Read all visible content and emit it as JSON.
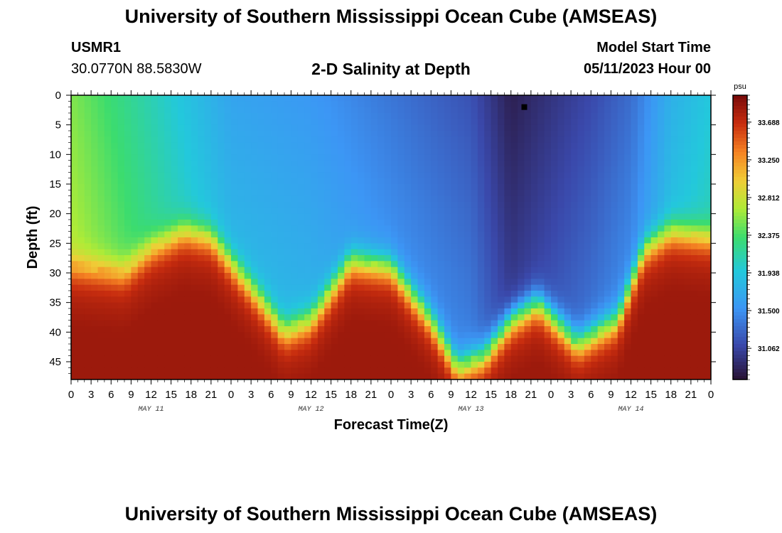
{
  "header": {
    "title": "University of Southern Mississippi Ocean Cube (AMSEAS)",
    "station": "USMR1",
    "coords": "30.0770N  88.5830W",
    "subtitle": "2-D Salinity at Depth",
    "model_start_label": "Model Start Time",
    "model_start_value": "05/11/2023 Hour 00"
  },
  "footer": {
    "title": "University of Southern Mississippi Ocean Cube (AMSEAS)"
  },
  "chart_data": {
    "type": "heatmap",
    "title": "2-D Salinity at Depth",
    "xlabel": "Forecast Time(Z)",
    "ylabel": "Depth (ft)",
    "x_range_hours": [
      0,
      96
    ],
    "y_range_ft": [
      0,
      48
    ],
    "x_tick_labels": [
      "0",
      "3",
      "6",
      "9",
      "12",
      "15",
      "18",
      "21",
      "0",
      "3",
      "6",
      "9",
      "12",
      "15",
      "18",
      "21",
      "0",
      "3",
      "6",
      "9",
      "12",
      "15",
      "18",
      "21",
      "0",
      "3",
      "6",
      "9",
      "12",
      "15",
      "18",
      "21",
      "0"
    ],
    "y_ticks": [
      0,
      5,
      10,
      15,
      20,
      25,
      30,
      35,
      40,
      45
    ],
    "day_labels": [
      "MAY 11",
      "MAY 12",
      "MAY 13",
      "MAY 14"
    ],
    "colorbar": {
      "unit": "psu",
      "range": [
        30.7,
        34.0
      ],
      "labels": [
        "33.688",
        "33.250",
        "32.812",
        "32.375",
        "31.938",
        "31.500",
        "31.062"
      ]
    },
    "surface_profile": {
      "hours": [
        0,
        12,
        24,
        36,
        48,
        60,
        66,
        72,
        78,
        84,
        90,
        96
      ],
      "psu": [
        32.55,
        32.1,
        31.65,
        31.55,
        31.35,
        31.15,
        30.8,
        30.95,
        31.1,
        31.3,
        31.75,
        31.95
      ]
    },
    "bottom_layer_top": {
      "hours": [
        0,
        8,
        12,
        17,
        21,
        28,
        32,
        36,
        42,
        48,
        54,
        58,
        62,
        66,
        70,
        76,
        82,
        86,
        90,
        96
      ],
      "depth_ft": [
        29,
        30,
        26,
        23,
        24,
        34,
        40,
        38,
        28,
        29,
        38,
        46,
        44,
        38,
        35,
        42,
        38,
        26,
        23,
        24
      ]
    },
    "bottom_psu": 33.7,
    "marker": {
      "hour": 68,
      "depth_ft": 2
    }
  }
}
